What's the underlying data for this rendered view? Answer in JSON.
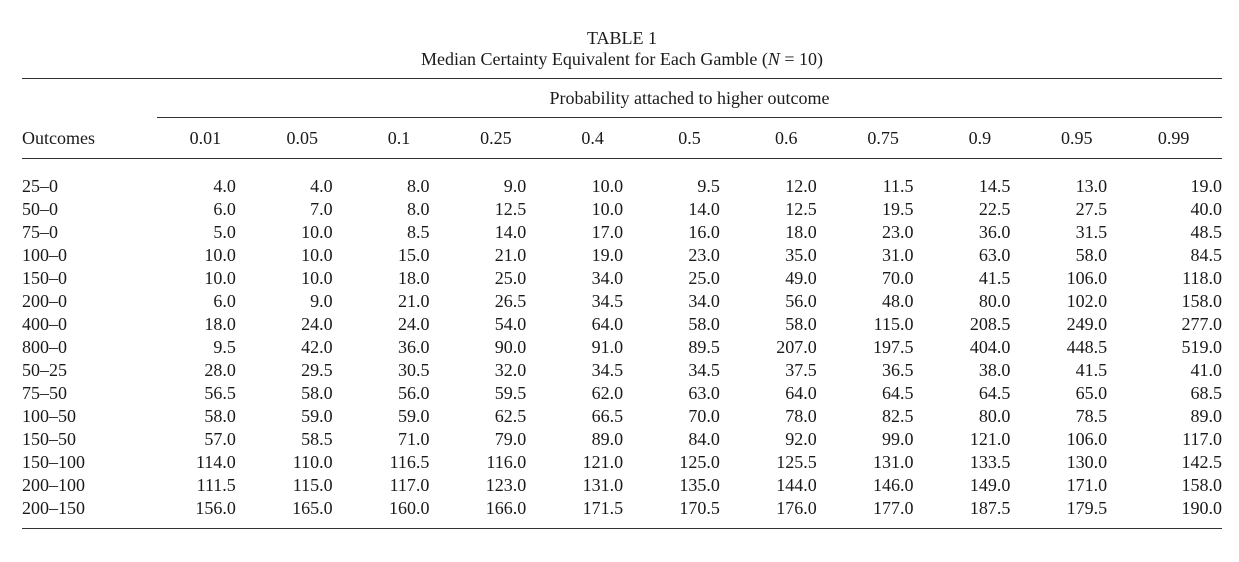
{
  "table": {
    "label": "TABLE 1",
    "title_prefix": "Median Certainty Equivalent for Each Gamble (",
    "title_n": "N",
    "title_suffix": " = 10)",
    "spanner": "Probability attached to higher outcome",
    "outcome_header": "Outcomes",
    "probabilities": [
      "0.01",
      "0.05",
      "0.1",
      "0.25",
      "0.4",
      "0.5",
      "0.6",
      "0.75",
      "0.9",
      "0.95",
      "0.99"
    ],
    "rows": [
      {
        "outcome": "25–0",
        "values": [
          "4.0",
          "4.0",
          "8.0",
          "9.0",
          "10.0",
          "9.5",
          "12.0",
          "11.5",
          "14.5",
          "13.0",
          "19.0"
        ]
      },
      {
        "outcome": "50–0",
        "values": [
          "6.0",
          "7.0",
          "8.0",
          "12.5",
          "10.0",
          "14.0",
          "12.5",
          "19.5",
          "22.5",
          "27.5",
          "40.0"
        ]
      },
      {
        "outcome": "75–0",
        "values": [
          "5.0",
          "10.0",
          "8.5",
          "14.0",
          "17.0",
          "16.0",
          "18.0",
          "23.0",
          "36.0",
          "31.5",
          "48.5"
        ]
      },
      {
        "outcome": "100–0",
        "values": [
          "10.0",
          "10.0",
          "15.0",
          "21.0",
          "19.0",
          "23.0",
          "35.0",
          "31.0",
          "63.0",
          "58.0",
          "84.5"
        ]
      },
      {
        "outcome": "150–0",
        "values": [
          "10.0",
          "10.0",
          "18.0",
          "25.0",
          "34.0",
          "25.0",
          "49.0",
          "70.0",
          "41.5",
          "106.0",
          "118.0"
        ]
      },
      {
        "outcome": "200–0",
        "values": [
          "6.0",
          "9.0",
          "21.0",
          "26.5",
          "34.5",
          "34.0",
          "56.0",
          "48.0",
          "80.0",
          "102.0",
          "158.0"
        ]
      },
      {
        "outcome": "400–0",
        "values": [
          "18.0",
          "24.0",
          "24.0",
          "54.0",
          "64.0",
          "58.0",
          "58.0",
          "115.0",
          "208.5",
          "249.0",
          "277.0"
        ]
      },
      {
        "outcome": "800–0",
        "values": [
          "9.5",
          "42.0",
          "36.0",
          "90.0",
          "91.0",
          "89.5",
          "207.0",
          "197.5",
          "404.0",
          "448.5",
          "519.0"
        ]
      },
      {
        "outcome": "50–25",
        "values": [
          "28.0",
          "29.5",
          "30.5",
          "32.0",
          "34.5",
          "34.5",
          "37.5",
          "36.5",
          "38.0",
          "41.5",
          "41.0"
        ]
      },
      {
        "outcome": "75–50",
        "values": [
          "56.5",
          "58.0",
          "56.0",
          "59.5",
          "62.0",
          "63.0",
          "64.0",
          "64.5",
          "64.5",
          "65.0",
          "68.5"
        ]
      },
      {
        "outcome": "100–50",
        "values": [
          "58.0",
          "59.0",
          "59.0",
          "62.5",
          "66.5",
          "70.0",
          "78.0",
          "82.5",
          "80.0",
          "78.5",
          "89.0"
        ]
      },
      {
        "outcome": "150–50",
        "values": [
          "57.0",
          "58.5",
          "71.0",
          "79.0",
          "89.0",
          "84.0",
          "92.0",
          "99.0",
          "121.0",
          "106.0",
          "117.0"
        ]
      },
      {
        "outcome": "150–100",
        "values": [
          "114.0",
          "110.0",
          "116.5",
          "116.0",
          "121.0",
          "125.0",
          "125.5",
          "131.0",
          "133.5",
          "130.0",
          "142.5"
        ]
      },
      {
        "outcome": "200–100",
        "values": [
          "111.5",
          "115.0",
          "117.0",
          "123.0",
          "131.0",
          "135.0",
          "144.0",
          "146.0",
          "149.0",
          "171.0",
          "158.0"
        ]
      },
      {
        "outcome": "200–150",
        "values": [
          "156.0",
          "165.0",
          "160.0",
          "166.0",
          "171.5",
          "170.5",
          "176.0",
          "177.0",
          "187.5",
          "179.5",
          "190.0"
        ]
      }
    ]
  }
}
